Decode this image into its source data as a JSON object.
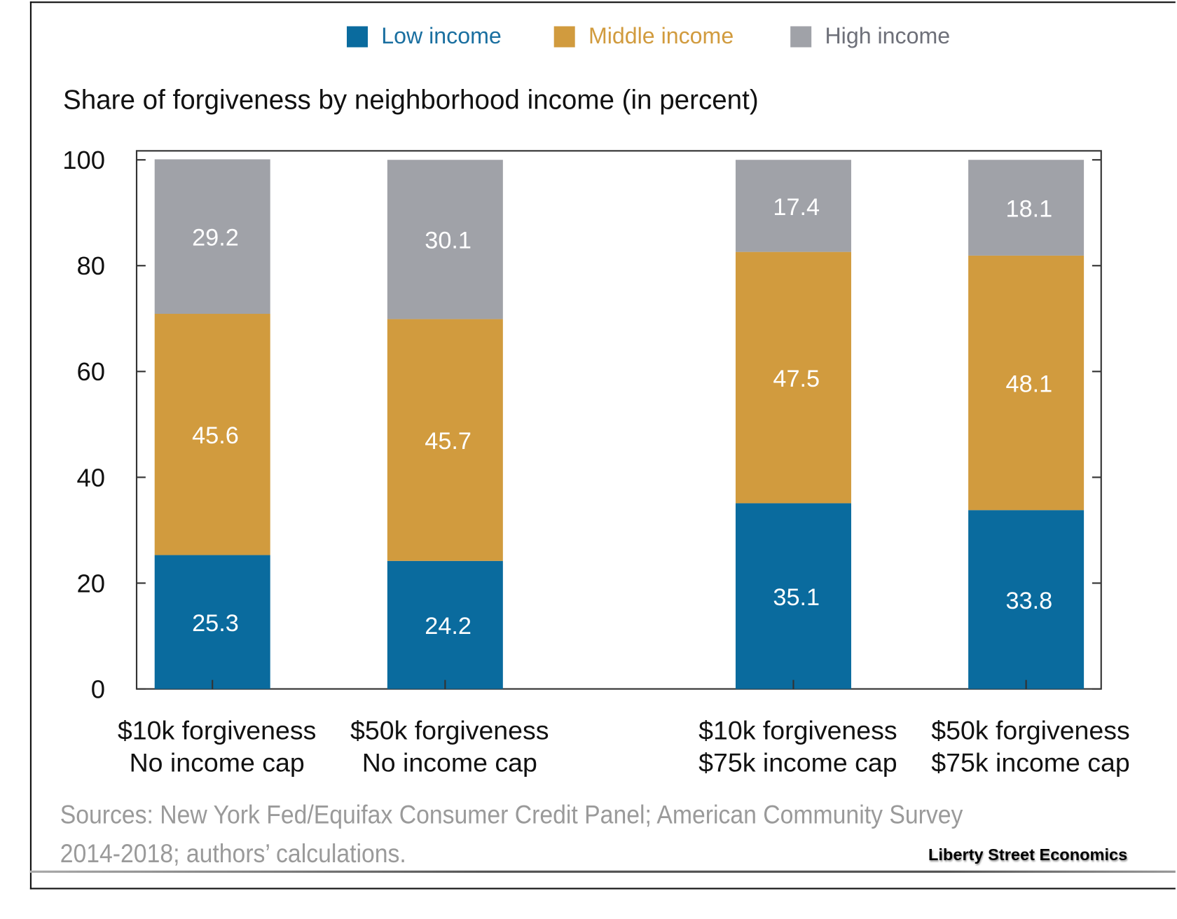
{
  "chart_data": {
    "type": "bar",
    "stacked": true,
    "title": "Share of forgiveness by neighborhood income (in percent)",
    "categories": [
      [
        "$10k forgiveness",
        "No income cap"
      ],
      [
        "$50k forgiveness",
        "No income cap"
      ],
      [
        "$10k forgiveness",
        "$75k income cap"
      ],
      [
        "$50k forgiveness",
        "$75k income cap"
      ]
    ],
    "series": [
      {
        "name": "Low income",
        "color": "#0a6b9e",
        "values": [
          25.3,
          24.2,
          35.1,
          33.8
        ]
      },
      {
        "name": "Middle income",
        "color": "#d19b3e",
        "values": [
          45.6,
          45.7,
          47.5,
          48.1
        ]
      },
      {
        "name": "High income",
        "color": "#a0a2a8",
        "values": [
          29.2,
          30.1,
          17.4,
          18.1
        ]
      }
    ],
    "legend_text_colors": [
      "#1a6fa0",
      "#d19b3e",
      "#6e7079"
    ],
    "ylim": [
      0,
      100
    ],
    "yticks": [
      0,
      20,
      40,
      60,
      80,
      100
    ],
    "legend": "top-center",
    "xlabel": "",
    "ylabel": ""
  },
  "source": "Sources: New York Fed/Equifax Consumer Credit Panel; American Community Survey 2014-2018; authors’ calculations.",
  "brand": "Liberty Street Economics"
}
